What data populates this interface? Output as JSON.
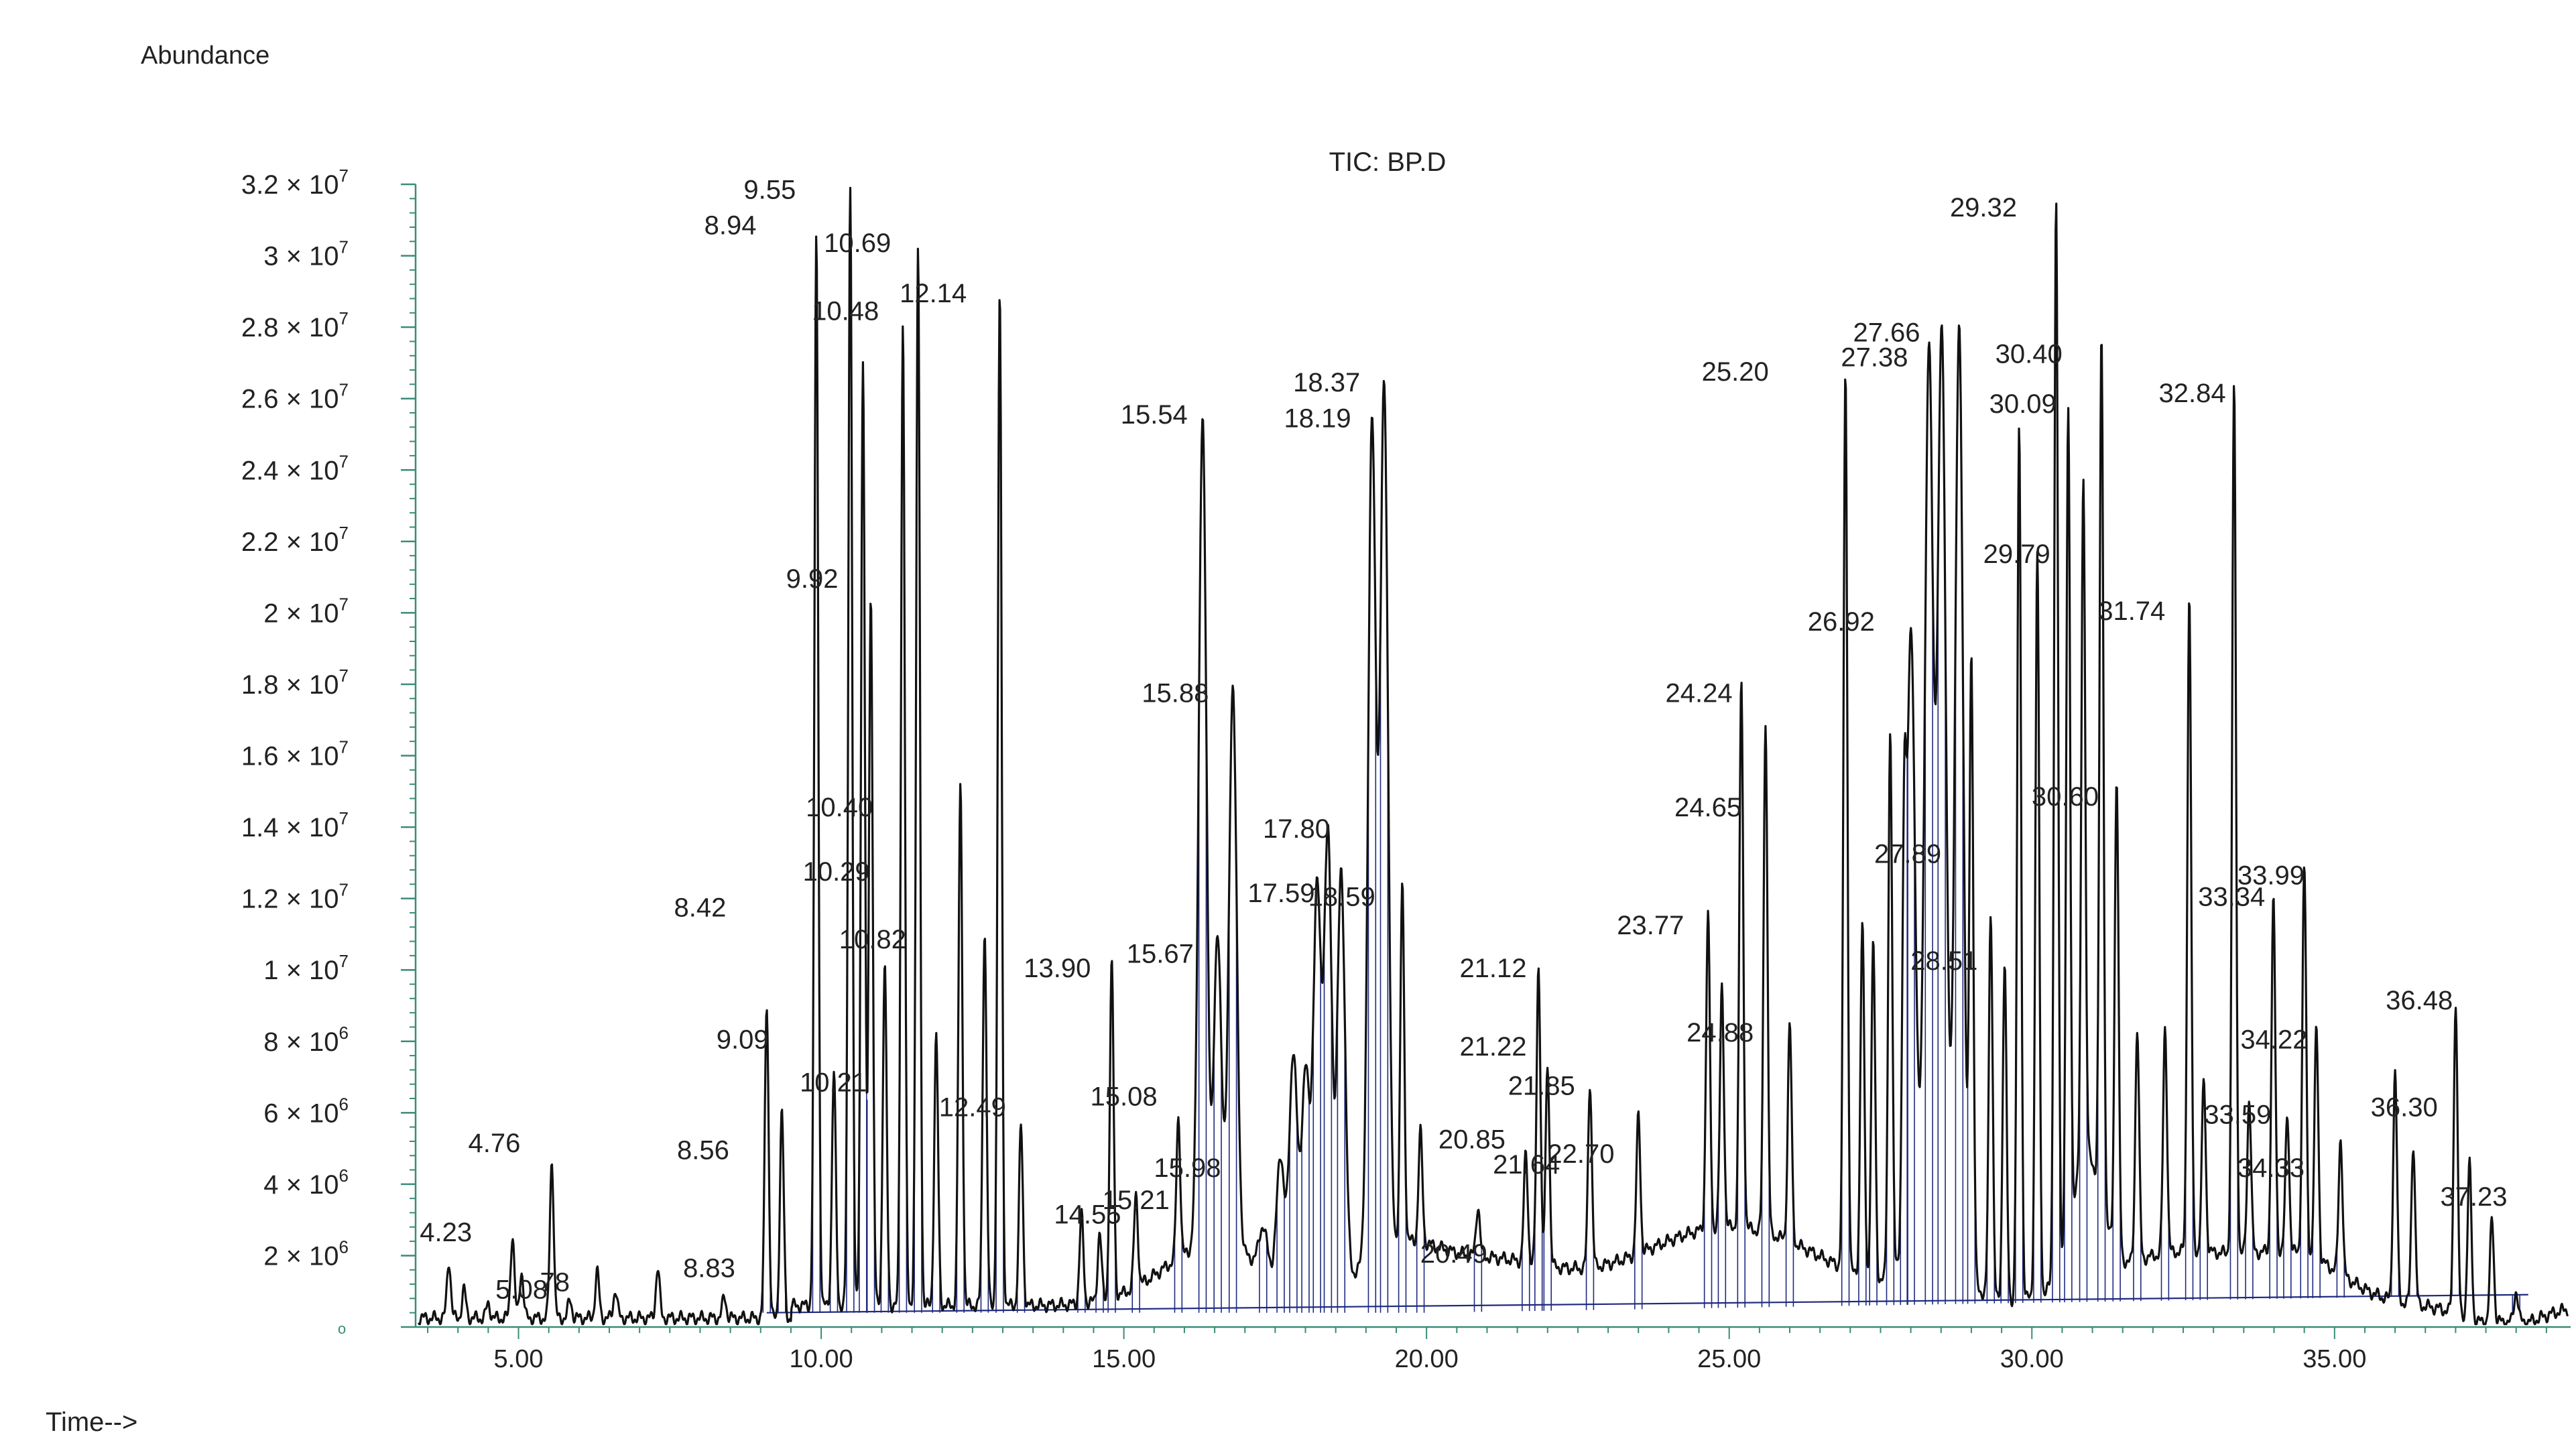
{
  "chart_data": {
    "type": "line",
    "title": "TIC: BP.D",
    "ylabel": "Abundance",
    "xlabel": "Time-->",
    "xlim": [
      3.3,
      38.9
    ],
    "ylim": [
      0,
      32000000
    ],
    "grid": false,
    "colors": {
      "trace": "#111111",
      "baseline": "#1f2a80",
      "axis": "#3a8c78"
    },
    "x_ticks": [
      "5.00",
      "10.00",
      "15.00",
      "20.00",
      "25.00",
      "30.00",
      "35.00"
    ],
    "x_tick_values": [
      5,
      10,
      15,
      20,
      25,
      30,
      35
    ],
    "y_ticks": [
      {
        "m": "3.2 × 10",
        "e": "7",
        "v": 32000000
      },
      {
        "m": "3 × 10",
        "e": "7",
        "v": 30000000
      },
      {
        "m": "2.8 × 10",
        "e": "7",
        "v": 28000000
      },
      {
        "m": "2.6 × 10",
        "e": "7",
        "v": 26000000
      },
      {
        "m": "2.4 × 10",
        "e": "7",
        "v": 24000000
      },
      {
        "m": "2.2 × 10",
        "e": "7",
        "v": 22000000
      },
      {
        "m": "2 × 10",
        "e": "7",
        "v": 20000000
      },
      {
        "m": "1.8 × 10",
        "e": "7",
        "v": 18000000
      },
      {
        "m": "1.6 × 10",
        "e": "7",
        "v": 16000000
      },
      {
        "m": "1.4 × 10",
        "e": "7",
        "v": 14000000
      },
      {
        "m": "1.2 × 10",
        "e": "7",
        "v": 12000000
      },
      {
        "m": "1 × 10",
        "e": "7",
        "v": 10000000
      },
      {
        "m": "8 × 10",
        "e": "6",
        "v": 8000000
      },
      {
        "m": "6 × 10",
        "e": "6",
        "v": 6000000
      },
      {
        "m": "4 × 10",
        "e": "6",
        "v": 4000000
      },
      {
        "m": "2 × 10",
        "e": "6",
        "v": 2000000
      },
      {
        "m": "o",
        "e": "",
        "v": 0
      }
    ],
    "peaks": [
      {
        "t": 3.85,
        "y": 1800000
      },
      {
        "t": 4.1,
        "y": 1000000
      },
      {
        "t": 4.5,
        "y": 600000
      },
      {
        "t": 4.9,
        "y": 2500000
      },
      {
        "t": 5.05,
        "y": 1500000
      },
      {
        "t": 5.55,
        "y": 4600000
      },
      {
        "t": 5.85,
        "y": 700000
      },
      {
        "t": 6.3,
        "y": 1500000
      },
      {
        "t": 6.6,
        "y": 1000000
      },
      {
        "t": 7.3,
        "y": 1600000
      },
      {
        "t": 8.4,
        "y": 800000
      },
      {
        "t": 9.1,
        "y": 9000000
      },
      {
        "t": 9.35,
        "y": 6000000
      },
      {
        "t": 9.92,
        "y": 30500000
      },
      {
        "t": 10.21,
        "y": 7000000
      },
      {
        "t": 10.48,
        "y": 32000000
      },
      {
        "t": 10.69,
        "y": 27000000
      },
      {
        "t": 10.82,
        "y": 20500000
      },
      {
        "t": 11.05,
        "y": 10000000
      },
      {
        "t": 11.35,
        "y": 28000000
      },
      {
        "t": 11.6,
        "y": 30000000
      },
      {
        "t": 11.9,
        "y": 8000000
      },
      {
        "t": 12.3,
        "y": 15000000
      },
      {
        "t": 12.7,
        "y": 11000000
      },
      {
        "t": 12.95,
        "y": 28800000
      },
      {
        "t": 13.3,
        "y": 5500000
      },
      {
        "t": 14.3,
        "y": 3000000
      },
      {
        "t": 14.6,
        "y": 2500000
      },
      {
        "t": 14.8,
        "y": 10000000
      },
      {
        "t": 15.2,
        "y": 3500000
      },
      {
        "t": 15.9,
        "y": 5500000
      },
      {
        "t": 16.3,
        "y": 25000000
      },
      {
        "t": 16.55,
        "y": 10500000
      },
      {
        "t": 16.8,
        "y": 17500000
      },
      {
        "t": 17.3,
        "y": 2500000
      },
      {
        "t": 17.59,
        "y": 4500000
      },
      {
        "t": 17.8,
        "y": 7500000
      },
      {
        "t": 18.0,
        "y": 7000000
      },
      {
        "t": 18.19,
        "y": 12000000
      },
      {
        "t": 18.37,
        "y": 13500000
      },
      {
        "t": 18.59,
        "y": 12500000
      },
      {
        "t": 19.1,
        "y": 25000000
      },
      {
        "t": 19.3,
        "y": 26000000
      },
      {
        "t": 19.6,
        "y": 12000000
      },
      {
        "t": 19.9,
        "y": 5000000
      },
      {
        "t": 20.85,
        "y": 3000000
      },
      {
        "t": 21.64,
        "y": 4500000
      },
      {
        "t": 21.85,
        "y": 9800000
      },
      {
        "t": 22.0,
        "y": 7000000
      },
      {
        "t": 22.7,
        "y": 6500000
      },
      {
        "t": 23.5,
        "y": 5500000
      },
      {
        "t": 24.65,
        "y": 11000000
      },
      {
        "t": 24.88,
        "y": 9000000
      },
      {
        "t": 25.2,
        "y": 17500000
      },
      {
        "t": 25.6,
        "y": 16500000
      },
      {
        "t": 26.0,
        "y": 8000000
      },
      {
        "t": 26.92,
        "y": 26500000
      },
      {
        "t": 27.2,
        "y": 11000000
      },
      {
        "t": 27.38,
        "y": 10500000
      },
      {
        "t": 27.66,
        "y": 16500000
      },
      {
        "t": 27.89,
        "y": 11500000
      },
      {
        "t": 28.0,
        "y": 19000000
      },
      {
        "t": 28.3,
        "y": 26500000
      },
      {
        "t": 28.51,
        "y": 27000000
      },
      {
        "t": 28.8,
        "y": 27500000
      },
      {
        "t": 29.0,
        "y": 18500000
      },
      {
        "t": 29.32,
        "y": 11500000
      },
      {
        "t": 29.55,
        "y": 10000000
      },
      {
        "t": 29.79,
        "y": 25000000
      },
      {
        "t": 30.09,
        "y": 21500000
      },
      {
        "t": 30.4,
        "y": 31200000
      },
      {
        "t": 30.6,
        "y": 25000000
      },
      {
        "t": 30.85,
        "y": 23000000
      },
      {
        "t": 31.15,
        "y": 27000000
      },
      {
        "t": 31.4,
        "y": 15000000
      },
      {
        "t": 31.74,
        "y": 8000000
      },
      {
        "t": 32.2,
        "y": 8000000
      },
      {
        "t": 32.6,
        "y": 20000000
      },
      {
        "t": 32.84,
        "y": 6500000
      },
      {
        "t": 33.34,
        "y": 26000000
      },
      {
        "t": 33.59,
        "y": 6000000
      },
      {
        "t": 33.99,
        "y": 11500000
      },
      {
        "t": 34.22,
        "y": 5500000
      },
      {
        "t": 34.5,
        "y": 12500000
      },
      {
        "t": 34.7,
        "y": 8000000
      },
      {
        "t": 35.1,
        "y": 5000000
      },
      {
        "t": 36.0,
        "y": 7000000
      },
      {
        "t": 36.3,
        "y": 5000000
      },
      {
        "t": 37.0,
        "y": 9000000
      },
      {
        "t": 37.23,
        "y": 4500000
      },
      {
        "t": 37.6,
        "y": 3000000
      },
      {
        "t": 38.0,
        "y": 1000000
      }
    ],
    "annotations": [
      {
        "text": "4.23",
        "t": 3.8,
        "y": 2400000
      },
      {
        "text": "4.76",
        "t": 4.6,
        "y": 4900000
      },
      {
        "text": "5.08",
        "t": 5.05,
        "y": 800000
      },
      {
        "text": "78",
        "t": 5.6,
        "y": 1000000
      },
      {
        "text": "8.42",
        "t": 8.0,
        "y": 11500000
      },
      {
        "text": "8.56",
        "t": 8.05,
        "y": 4700000
      },
      {
        "text": "8.83",
        "t": 8.15,
        "y": 1400000
      },
      {
        "text": "8.94",
        "t": 8.5,
        "y": 30600000
      },
      {
        "text": "9.09",
        "t": 8.7,
        "y": 7800000
      },
      {
        "text": "9.55",
        "t": 9.15,
        "y": 31600000
      },
      {
        "text": "9.92",
        "t": 9.85,
        "y": 20700000
      },
      {
        "text": "10.21",
        "t": 10.2,
        "y": 6600000
      },
      {
        "text": "10.29",
        "t": 10.25,
        "y": 12500000
      },
      {
        "text": "10.40",
        "t": 10.3,
        "y": 14300000
      },
      {
        "text": "10.48",
        "t": 10.4,
        "y": 28200000
      },
      {
        "text": "10.69",
        "t": 10.6,
        "y": 30100000
      },
      {
        "text": "10.82",
        "t": 10.85,
        "y": 10600000
      },
      {
        "text": "12.14",
        "t": 11.85,
        "y": 28700000
      },
      {
        "text": "12.49",
        "t": 12.5,
        "y": 5900000
      },
      {
        "text": "13.90",
        "t": 13.9,
        "y": 9800000
      },
      {
        "text": "14.55",
        "t": 14.4,
        "y": 2900000
      },
      {
        "text": "15.08",
        "t": 15.0,
        "y": 6200000
      },
      {
        "text": "15.21",
        "t": 15.2,
        "y": 3300000
      },
      {
        "text": "15.54",
        "t": 15.5,
        "y": 25300000
      },
      {
        "text": "15.67",
        "t": 15.6,
        "y": 10200000
      },
      {
        "text": "15.88",
        "t": 15.85,
        "y": 17500000
      },
      {
        "text": "15.98",
        "t": 16.05,
        "y": 4200000
      },
      {
        "text": "17.59",
        "t": 17.6,
        "y": 11900000
      },
      {
        "text": "17.80",
        "t": 17.85,
        "y": 13700000
      },
      {
        "text": "18.19",
        "t": 18.2,
        "y": 25200000
      },
      {
        "text": "18.37",
        "t": 18.35,
        "y": 26200000
      },
      {
        "text": "18.59",
        "t": 18.6,
        "y": 11800000
      },
      {
        "text": "20.49",
        "t": 20.45,
        "y": 1800000
      },
      {
        "text": "20.85",
        "t": 20.75,
        "y": 5000000
      },
      {
        "text": "21.12",
        "t": 21.1,
        "y": 9800000
      },
      {
        "text": "21.22",
        "t": 21.1,
        "y": 7600000
      },
      {
        "text": "21.64",
        "t": 21.65,
        "y": 4300000
      },
      {
        "text": "21.85",
        "t": 21.9,
        "y": 6500000
      },
      {
        "text": "22.70",
        "t": 22.55,
        "y": 4600000
      },
      {
        "text": "23.77",
        "t": 23.7,
        "y": 11000000
      },
      {
        "text": "24.24",
        "t": 24.5,
        "y": 17500000
      },
      {
        "text": "24.65",
        "t": 24.65,
        "y": 14300000
      },
      {
        "text": "24.88",
        "t": 24.85,
        "y": 8000000
      },
      {
        "text": "25.20",
        "t": 25.1,
        "y": 26500000
      },
      {
        "text": "26.92",
        "t": 26.85,
        "y": 19500000
      },
      {
        "text": "27.38",
        "t": 27.4,
        "y": 26900000
      },
      {
        "text": "27.66",
        "t": 27.6,
        "y": 27600000
      },
      {
        "text": "27.89",
        "t": 27.95,
        "y": 13000000
      },
      {
        "text": "28.51",
        "t": 28.55,
        "y": 10000000
      },
      {
        "text": "29.32",
        "t": 29.2,
        "y": 31100000
      },
      {
        "text": "29.79",
        "t": 29.75,
        "y": 21400000
      },
      {
        "text": "30.09",
        "t": 29.85,
        "y": 25600000
      },
      {
        "text": "30.40",
        "t": 29.95,
        "y": 27000000
      },
      {
        "text": "30.60",
        "t": 30.55,
        "y": 14600000
      },
      {
        "text": "31.74",
        "t": 31.65,
        "y": 19800000
      },
      {
        "text": "32.84",
        "t": 32.65,
        "y": 25900000
      },
      {
        "text": "33.34",
        "t": 33.3,
        "y": 11800000
      },
      {
        "text": "33.59",
        "t": 33.4,
        "y": 5700000
      },
      {
        "text": "33.99",
        "t": 33.95,
        "y": 12400000
      },
      {
        "text": "34.22",
        "t": 34.0,
        "y": 7800000
      },
      {
        "text": "34.33",
        "t": 33.95,
        "y": 4200000
      },
      {
        "text": "36.30",
        "t": 36.15,
        "y": 5900000
      },
      {
        "text": "36.48",
        "t": 36.4,
        "y": 8900000
      },
      {
        "text": "37.23",
        "t": 37.3,
        "y": 3400000
      }
    ]
  }
}
